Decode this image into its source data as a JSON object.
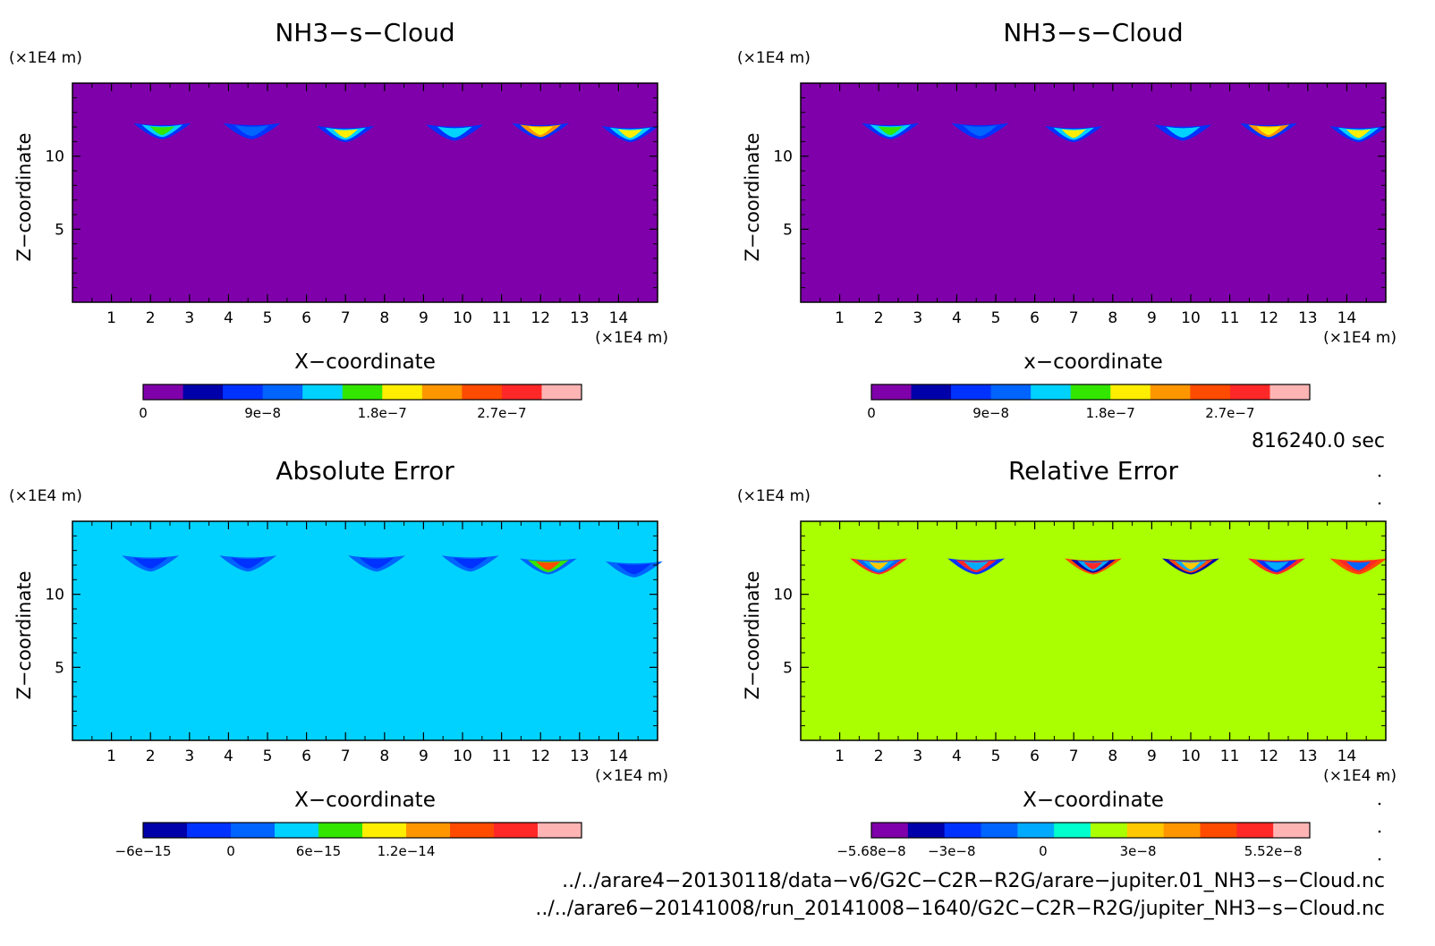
{
  "chart_data": [
    {
      "type": "heatmap",
      "title": "NH3−s−Cloud",
      "xlabel": "X−coordinate",
      "ylabel": "Z−coordinate",
      "xunit": "(×1E4 m)",
      "yunit": "(×1E4 m)",
      "xlim": [
        0,
        15
      ],
      "ylim": [
        0,
        15
      ],
      "xticks": [
        1,
        2,
        3,
        4,
        5,
        6,
        7,
        8,
        9,
        10,
        11,
        12,
        13,
        14
      ],
      "yticks": [
        5,
        10
      ],
      "background_color": "#7f00aa",
      "colorbar": {
        "colors": [
          "#7f00aa",
          "#0000aa",
          "#0032ff",
          "#0064ff",
          "#00d2ff",
          "#32e600",
          "#ffee00",
          "#ff9600",
          "#ff4b00",
          "#ff2828",
          "#ffb4b4"
        ],
        "labels": [
          "0",
          "9e−8",
          "1.8e−7",
          "2.7e−7"
        ],
        "label_positions": [
          0,
          3,
          6,
          9
        ]
      },
      "features": [
        {
          "x": 2.3,
          "z": 11.8,
          "colors": [
            "#0032ff",
            "#00d2ff",
            "#32e600"
          ]
        },
        {
          "x": 4.6,
          "z": 11.8,
          "colors": [
            "#0032ff",
            "#0064ff"
          ]
        },
        {
          "x": 7.0,
          "z": 11.6,
          "colors": [
            "#0032ff",
            "#00d2ff",
            "#ffee00"
          ]
        },
        {
          "x": 9.8,
          "z": 11.7,
          "colors": [
            "#0032ff",
            "#00d2ff"
          ]
        },
        {
          "x": 12.0,
          "z": 11.8,
          "colors": [
            "#0032ff",
            "#ff9600",
            "#ffee00"
          ]
        },
        {
          "x": 14.3,
          "z": 11.6,
          "colors": [
            "#0032ff",
            "#00d2ff",
            "#ffee00"
          ]
        }
      ]
    },
    {
      "type": "heatmap",
      "title": "NH3−s−Cloud",
      "xlabel": "x−coordinate",
      "ylabel": "Z−coordinate",
      "xunit": "(×1E4 m)",
      "yunit": "(×1E4 m)",
      "xlim": [
        0,
        15
      ],
      "ylim": [
        0,
        15
      ],
      "xticks": [
        1,
        2,
        3,
        4,
        5,
        6,
        7,
        8,
        9,
        10,
        11,
        12,
        13,
        14
      ],
      "yticks": [
        5,
        10
      ],
      "background_color": "#7f00aa",
      "colorbar": {
        "colors": [
          "#7f00aa",
          "#0000aa",
          "#0032ff",
          "#0064ff",
          "#00d2ff",
          "#32e600",
          "#ffee00",
          "#ff9600",
          "#ff4b00",
          "#ff2828",
          "#ffb4b4"
        ],
        "labels": [
          "0",
          "9e−8",
          "1.8e−7",
          "2.7e−7"
        ],
        "label_positions": [
          0,
          3,
          6,
          9
        ]
      },
      "features": [
        {
          "x": 2.3,
          "z": 11.8,
          "colors": [
            "#0032ff",
            "#00d2ff",
            "#32e600"
          ]
        },
        {
          "x": 4.6,
          "z": 11.8,
          "colors": [
            "#0032ff",
            "#0064ff"
          ]
        },
        {
          "x": 7.0,
          "z": 11.6,
          "colors": [
            "#0032ff",
            "#00d2ff",
            "#ffee00"
          ]
        },
        {
          "x": 9.8,
          "z": 11.7,
          "colors": [
            "#0032ff",
            "#00d2ff"
          ]
        },
        {
          "x": 12.0,
          "z": 11.8,
          "colors": [
            "#0032ff",
            "#ff9600",
            "#ffee00"
          ]
        },
        {
          "x": 14.3,
          "z": 11.6,
          "colors": [
            "#0032ff",
            "#00d2ff",
            "#ffee00"
          ]
        }
      ]
    },
    {
      "type": "heatmap",
      "title": "Absolute Error",
      "xlabel": "X−coordinate",
      "ylabel": "Z−coordinate",
      "xunit": "(×1E4 m)",
      "yunit": "(×1E4 m)",
      "xlim": [
        0,
        15
      ],
      "ylim": [
        0,
        15
      ],
      "xticks": [
        1,
        2,
        3,
        4,
        5,
        6,
        7,
        8,
        9,
        10,
        11,
        12,
        13,
        14
      ],
      "yticks": [
        5,
        10
      ],
      "background_color": "#00d2ff",
      "colorbar": {
        "colors": [
          "#0000aa",
          "#0032ff",
          "#0064ff",
          "#00d2ff",
          "#32e600",
          "#ffee00",
          "#ff9600",
          "#ff4b00",
          "#ff2828",
          "#ffb4b4"
        ],
        "labels": [
          "−6e−15",
          "0",
          "6e−15",
          "1.2e−14"
        ],
        "label_positions": [
          0,
          2,
          4,
          6
        ]
      },
      "features": [
        {
          "x": 2.0,
          "z": 12.2,
          "colors": [
            "#0064ff",
            "#0032ff"
          ]
        },
        {
          "x": 4.5,
          "z": 12.2,
          "colors": [
            "#0064ff",
            "#0032ff"
          ]
        },
        {
          "x": 7.8,
          "z": 12.2,
          "colors": [
            "#0064ff",
            "#0032ff"
          ]
        },
        {
          "x": 10.2,
          "z": 12.2,
          "colors": [
            "#0064ff",
            "#0032ff"
          ]
        },
        {
          "x": 12.2,
          "z": 12.0,
          "colors": [
            "#0064ff",
            "#32e600",
            "#ff4b00"
          ]
        },
        {
          "x": 14.4,
          "z": 11.8,
          "colors": [
            "#0064ff",
            "#0032ff"
          ]
        }
      ]
    },
    {
      "type": "heatmap",
      "title": "Relative Error",
      "xlabel": "X−coordinate",
      "ylabel": "Z−coordinate",
      "xunit": "(×1E4 m)",
      "yunit": "(×1E4 m)",
      "xlim": [
        0,
        15
      ],
      "ylim": [
        0,
        15
      ],
      "xticks": [
        1,
        2,
        3,
        4,
        5,
        6,
        7,
        8,
        9,
        10,
        11,
        12,
        13,
        14
      ],
      "yticks": [
        5,
        10
      ],
      "background_color": "#aaff00",
      "colorbar": {
        "colors": [
          "#7f00aa",
          "#0000aa",
          "#0032ff",
          "#0064ff",
          "#00aaff",
          "#00ffcc",
          "#aaff00",
          "#ffc800",
          "#ff9600",
          "#ff4b00",
          "#ff2828",
          "#ffb4b4"
        ],
        "labels": [
          "−5.68e−8",
          "−3e−8",
          "0",
          "3e−8",
          "5.52e−8"
        ],
        "label_positions": [
          0,
          2.2,
          4.7,
          7.3,
          11
        ]
      },
      "features": [
        {
          "x": 2.0,
          "z": 12.0,
          "colors": [
            "#ff2828",
            "#0064ff",
            "#00aaff",
            "#ffc800"
          ]
        },
        {
          "x": 4.5,
          "z": 12.0,
          "colors": [
            "#0032ff",
            "#ff2828",
            "#00aaff"
          ]
        },
        {
          "x": 7.5,
          "z": 12.0,
          "colors": [
            "#ff4b00",
            "#0000aa",
            "#00aaff",
            "#ff2828"
          ]
        },
        {
          "x": 10.0,
          "z": 12.0,
          "colors": [
            "#0000aa",
            "#ff4b00",
            "#00aaff",
            "#ffc800"
          ]
        },
        {
          "x": 12.2,
          "z": 12.0,
          "colors": [
            "#ff2828",
            "#0032ff",
            "#00aaff"
          ]
        },
        {
          "x": 14.3,
          "z": 12.0,
          "colors": [
            "#ff4b00",
            "#ff2828",
            "#0064ff"
          ]
        }
      ]
    }
  ],
  "time_label": "816240.0 sec",
  "file_paths": [
    "../../arare4−20130118/data−v6/G2C−C2R−R2G/arare−jupiter.01_NH3−s−Cloud.nc",
    "../../arare6−20141008/run_20141008−1640/G2C−C2R−R2G/jupiter_NH3−s−Cloud.nc"
  ]
}
